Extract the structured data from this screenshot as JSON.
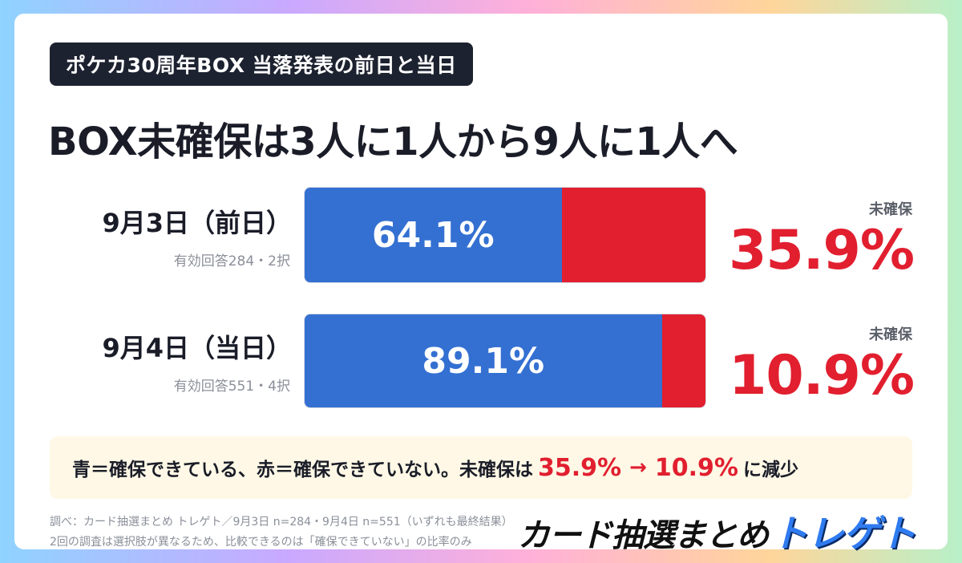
{
  "tag": "ポケカ30周年BOX 当落発表の前日と当日",
  "headline": "BOX未確保は3人に1人から9人に1人へ",
  "chart_data": {
    "type": "bar",
    "orientation": "horizontal-stacked",
    "categories": [
      "9月3日（前日）",
      "9月4日（当日）"
    ],
    "subtitles": [
      "有効回答284・2択",
      "有効回答551・4択"
    ],
    "series": [
      {
        "name": "確保",
        "color": "#3470d2",
        "values": [
          64.1,
          89.1
        ],
        "labels": [
          "64.1%",
          "89.1%"
        ]
      },
      {
        "name": "未確保",
        "color": "#e11f2f",
        "values": [
          35.9,
          10.9
        ],
        "labels": [
          "35.9%",
          "10.9%"
        ]
      }
    ],
    "unsecured_label": "未確保",
    "xlim": [
      0,
      100
    ]
  },
  "summary": {
    "text": "青＝確保できている、赤＝確保できていない。未確保は",
    "from": "35.9%",
    "arrow": "→",
    "to": "10.9%",
    "suffix": "に減少"
  },
  "notes": [
    "調べ：カード抽選まとめ トレゲト／9月3日 n=284・9月4日 n=551（いずれも最終結果）",
    "2回の調査は選択肢が異なるため、比較できるのは「確保できていない」の比率のみ"
  ],
  "logo": {
    "part_a": "カード抽選まとめ",
    "part_b": "トレゲト"
  },
  "colors": {
    "blue": "#3470d2",
    "red": "#e11f2f",
    "dark": "#1d2230"
  }
}
